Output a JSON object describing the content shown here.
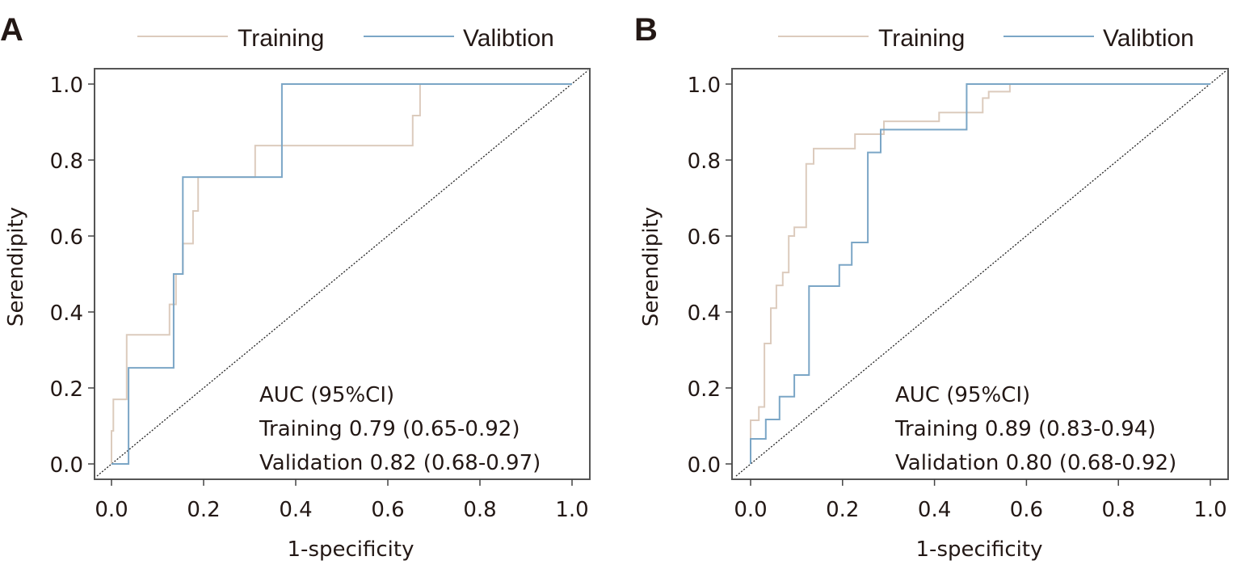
{
  "chart_data": [
    {
      "type": "line",
      "panel_label": "A",
      "title": "",
      "xlabel": "1-specificity",
      "ylabel": "Serendipity",
      "xlim": [
        0,
        1
      ],
      "ylim": [
        0,
        1
      ],
      "x_ticks": [
        "0.0",
        "0.2",
        "0.4",
        "0.6",
        "0.8",
        "1.0"
      ],
      "y_ticks": [
        "0.0",
        "0.2",
        "0.4",
        "0.6",
        "0.8",
        "1.0"
      ],
      "grid": false,
      "legend": {
        "placement": "top",
        "entries": [
          "Training",
          "Valibtion"
        ]
      },
      "reference_line": {
        "name": "chance",
        "x": [
          0,
          1
        ],
        "y": [
          0,
          1
        ],
        "style": "dotted"
      },
      "series": [
        {
          "name": "Training",
          "color": "#dccbbd",
          "step_points": [
            [
              0,
              0
            ],
            [
              0,
              0.087
            ],
            [
              0.004,
              0.087
            ],
            [
              0.004,
              0.17
            ],
            [
              0.033,
              0.17
            ],
            [
              0.033,
              0.34
            ],
            [
              0.126,
              0.34
            ],
            [
              0.126,
              0.42
            ],
            [
              0.14,
              0.42
            ],
            [
              0.14,
              0.5
            ],
            [
              0.155,
              0.5
            ],
            [
              0.155,
              0.58
            ],
            [
              0.177,
              0.58
            ],
            [
              0.177,
              0.666
            ],
            [
              0.188,
              0.666
            ],
            [
              0.188,
              0.755
            ],
            [
              0.312,
              0.755
            ],
            [
              0.312,
              0.838
            ],
            [
              0.654,
              0.838
            ],
            [
              0.654,
              0.917
            ],
            [
              0.67,
              0.917
            ],
            [
              0.67,
              1.0
            ],
            [
              1.0,
              1.0
            ]
          ]
        },
        {
          "name": "Valibtion",
          "color": "#7ba6c6",
          "step_points": [
            [
              0,
              0
            ],
            [
              0.037,
              0
            ],
            [
              0.037,
              0.253
            ],
            [
              0.135,
              0.253
            ],
            [
              0.135,
              0.5
            ],
            [
              0.155,
              0.5
            ],
            [
              0.155,
              0.755
            ],
            [
              0.37,
              0.755
            ],
            [
              0.37,
              1.0
            ],
            [
              1.0,
              1.0
            ]
          ]
        }
      ],
      "annotations": [
        "AUC (95%CI)",
        "Training 0.79 (0.65-0.92)",
        "Validation 0.82 (0.68-0.97)"
      ]
    },
    {
      "type": "line",
      "panel_label": "B",
      "title": "",
      "xlabel": "1-specificity",
      "ylabel": "Serendipity",
      "xlim": [
        0,
        1
      ],
      "ylim": [
        0,
        1
      ],
      "x_ticks": [
        "0.0",
        "0.2",
        "0.4",
        "0.6",
        "0.8",
        "1.0"
      ],
      "y_ticks": [
        "0.0",
        "0.2",
        "0.4",
        "0.6",
        "0.8",
        "1.0"
      ],
      "grid": false,
      "legend": {
        "placement": "top",
        "entries": [
          "Training",
          "Valibtion"
        ]
      },
      "reference_line": {
        "name": "chance",
        "x": [
          0,
          1
        ],
        "y": [
          0,
          1
        ],
        "style": "dotted"
      },
      "series": [
        {
          "name": "Training",
          "color": "#dccbbd",
          "step_points": [
            [
              0,
              0
            ],
            [
              0,
              0.115
            ],
            [
              0.018,
              0.115
            ],
            [
              0.018,
              0.15
            ],
            [
              0.03,
              0.15
            ],
            [
              0.03,
              0.317
            ],
            [
              0.044,
              0.317
            ],
            [
              0.044,
              0.41
            ],
            [
              0.056,
              0.41
            ],
            [
              0.056,
              0.47
            ],
            [
              0.07,
              0.47
            ],
            [
              0.07,
              0.504
            ],
            [
              0.083,
              0.504
            ],
            [
              0.083,
              0.6
            ],
            [
              0.095,
              0.6
            ],
            [
              0.095,
              0.623
            ],
            [
              0.121,
              0.623
            ],
            [
              0.121,
              0.79
            ],
            [
              0.137,
              0.79
            ],
            [
              0.137,
              0.83
            ],
            [
              0.227,
              0.83
            ],
            [
              0.227,
              0.868
            ],
            [
              0.29,
              0.868
            ],
            [
              0.29,
              0.902
            ],
            [
              0.41,
              0.902
            ],
            [
              0.41,
              0.925
            ],
            [
              0.505,
              0.925
            ],
            [
              0.505,
              0.963
            ],
            [
              0.518,
              0.963
            ],
            [
              0.518,
              0.98
            ],
            [
              0.564,
              0.98
            ],
            [
              0.564,
              1.0
            ],
            [
              1.0,
              1.0
            ]
          ]
        },
        {
          "name": "Valibtion",
          "color": "#7ba6c6",
          "step_points": [
            [
              0,
              0
            ],
            [
              0,
              0.066
            ],
            [
              0.033,
              0.066
            ],
            [
              0.033,
              0.117
            ],
            [
              0.063,
              0.117
            ],
            [
              0.063,
              0.177
            ],
            [
              0.095,
              0.177
            ],
            [
              0.095,
              0.234
            ],
            [
              0.127,
              0.234
            ],
            [
              0.127,
              0.468
            ],
            [
              0.193,
              0.468
            ],
            [
              0.193,
              0.524
            ],
            [
              0.22,
              0.524
            ],
            [
              0.22,
              0.583
            ],
            [
              0.255,
              0.583
            ],
            [
              0.255,
              0.82
            ],
            [
              0.283,
              0.82
            ],
            [
              0.283,
              0.88
            ],
            [
              0.47,
              0.88
            ],
            [
              0.47,
              1.0
            ],
            [
              1.0,
              1.0
            ]
          ]
        }
      ],
      "annotations": [
        "AUC (95%CI)",
        "Training 0.89 (0.83-0.94)",
        "Validation 0.80 (0.68-0.92)"
      ]
    }
  ]
}
